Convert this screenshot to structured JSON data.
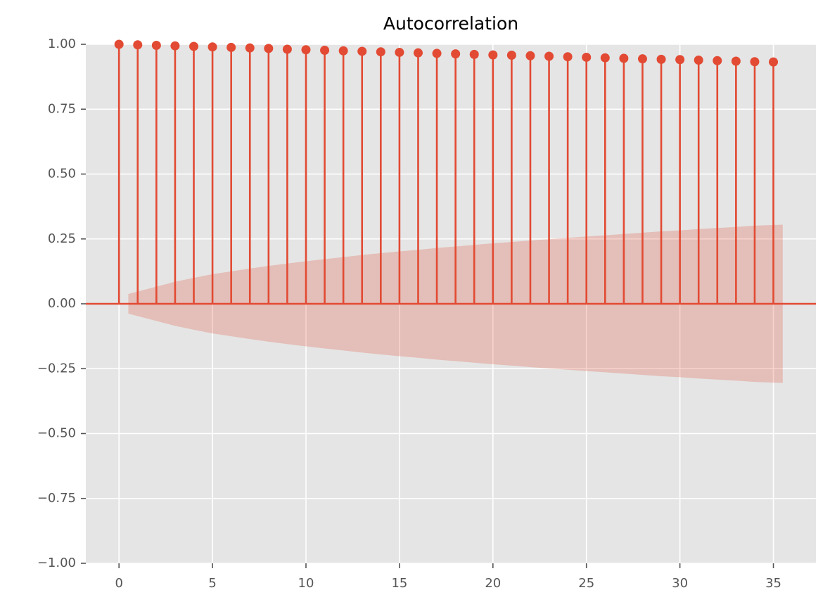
{
  "chart_data": {
    "type": "stem",
    "title": "Autocorrelation",
    "x": [
      0,
      1,
      2,
      3,
      4,
      5,
      6,
      7,
      8,
      9,
      10,
      11,
      12,
      13,
      14,
      15,
      16,
      17,
      18,
      19,
      20,
      21,
      22,
      23,
      24,
      25,
      26,
      27,
      28,
      29,
      30,
      31,
      32,
      33,
      34,
      35
    ],
    "values": [
      1.0,
      0.998,
      0.996,
      0.994,
      0.992,
      0.99,
      0.988,
      0.986,
      0.984,
      0.981,
      0.979,
      0.977,
      0.975,
      0.973,
      0.971,
      0.969,
      0.967,
      0.965,
      0.963,
      0.961,
      0.959,
      0.958,
      0.956,
      0.954,
      0.952,
      0.95,
      0.948,
      0.946,
      0.944,
      0.942,
      0.941,
      0.939,
      0.937,
      0.935,
      0.933,
      0.932
    ],
    "color": "#E24A33",
    "confint_x": [
      0.5,
      2,
      3,
      4,
      5,
      6,
      7,
      8,
      9,
      10,
      11,
      12,
      13,
      14,
      15,
      16,
      17,
      18,
      19,
      20,
      21,
      22,
      23,
      24,
      25,
      26,
      27,
      28,
      29,
      30,
      31,
      32,
      33,
      34,
      35.5
    ],
    "confint_upper": [
      0.038,
      0.066,
      0.085,
      0.1,
      0.114,
      0.125,
      0.136,
      0.146,
      0.155,
      0.164,
      0.172,
      0.18,
      0.188,
      0.195,
      0.202,
      0.208,
      0.215,
      0.221,
      0.227,
      0.233,
      0.238,
      0.244,
      0.249,
      0.254,
      0.259,
      0.264,
      0.269,
      0.274,
      0.279,
      0.283,
      0.288,
      0.292,
      0.296,
      0.301,
      0.305
    ],
    "confint_lower": [
      -0.038,
      -0.066,
      -0.085,
      -0.1,
      -0.114,
      -0.125,
      -0.136,
      -0.146,
      -0.155,
      -0.164,
      -0.172,
      -0.18,
      -0.188,
      -0.195,
      -0.202,
      -0.208,
      -0.215,
      -0.221,
      -0.227,
      -0.233,
      -0.238,
      -0.244,
      -0.249,
      -0.254,
      -0.259,
      -0.264,
      -0.269,
      -0.274,
      -0.279,
      -0.283,
      -0.288,
      -0.292,
      -0.296,
      -0.301,
      -0.305
    ],
    "xlim": [
      -1.775,
      37.275
    ],
    "ylim": [
      -1,
      1
    ],
    "xticks": [
      0,
      5,
      10,
      15,
      20,
      25,
      30,
      35
    ],
    "yticks": [
      {
        "value": -1,
        "label": "−1.00"
      },
      {
        "value": -0.75,
        "label": "−0.75"
      },
      {
        "value": -0.5,
        "label": "−0.50"
      },
      {
        "value": -0.25,
        "label": "−0.25"
      },
      {
        "value": 0,
        "label": "0.00"
      },
      {
        "value": 0.25,
        "label": "0.25"
      },
      {
        "value": 0.5,
        "label": "0.50"
      },
      {
        "value": 0.75,
        "label": "0.75"
      },
      {
        "value": 1,
        "label": "1.00"
      }
    ],
    "grid": true
  }
}
